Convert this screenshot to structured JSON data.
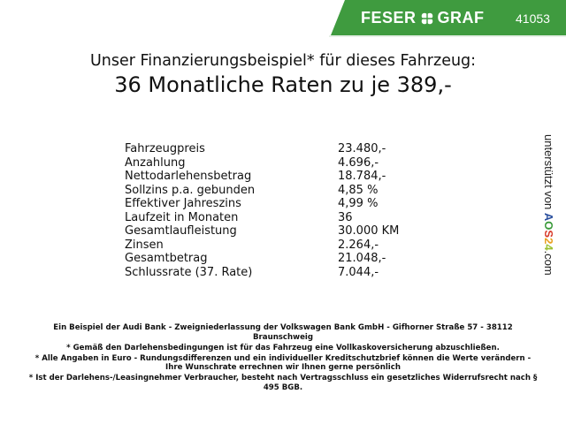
{
  "header": {
    "brand": "FESER",
    "brand2": "GRAF",
    "dealer_number": "41053",
    "brand_color": "#3f9b3f"
  },
  "title": {
    "line1": "Unser Finanzierungsbeispiel* für dieses Fahrzeug:",
    "line2": "36 Monatliche Raten zu je 389,-"
  },
  "rows": [
    {
      "label": "Fahrzeugpreis",
      "value": "23.480,-"
    },
    {
      "label": "Anzahlung",
      "value": "4.696,-"
    },
    {
      "label": "Nettodarlehensbetrag",
      "value": "18.784,-"
    },
    {
      "label": "Sollzins p.a. gebunden",
      "value": "4,85 %"
    },
    {
      "label": "Effektiver Jahreszins",
      "value": "4,99 %"
    },
    {
      "label": "Laufzeit in Monaten",
      "value": "36"
    },
    {
      "label": "Gesamtlaufleistung",
      "value": "30.000 KM"
    },
    {
      "label": "Zinsen",
      "value": "2.264,-"
    },
    {
      "label": "Gesamtbetrag",
      "value": "21.048,-"
    },
    {
      "label": "Schlussrate (37. Rate)",
      "value": "7.044,-"
    }
  ],
  "side": {
    "prefix": "unterstützt von",
    "brand_letters": [
      "A",
      "O",
      "S",
      "2",
      "4"
    ],
    "brand_colors": [
      "#2a4f9e",
      "#3a9a3a",
      "#d83a2a",
      "#e8a020",
      "#9ac030"
    ],
    "suffix": ".com"
  },
  "footer": {
    "lines": [
      "Ein Beispiel der Audi Bank - Zweigniederlassung der Volkswagen Bank GmbH - Gifhorner Straße 57 - 38112 Braunschweig",
      "* Gemäß den Darlehensbedingungen ist für das Fahrzeug eine Vollkaskoversicherung abzuschließen.",
      "* Alle Angaben in Euro - Rundungsdifferenzen und ein individueller Kreditschutzbrief können die Werte verändern - Ihre Wunschrate errechnen wir Ihnen gerne persönlich",
      "* Ist der Darlehens-/Leasingnehmer Verbraucher, besteht nach Vertragsschluss ein gesetzliches Widerrufsrecht nach § 495 BGB."
    ]
  }
}
